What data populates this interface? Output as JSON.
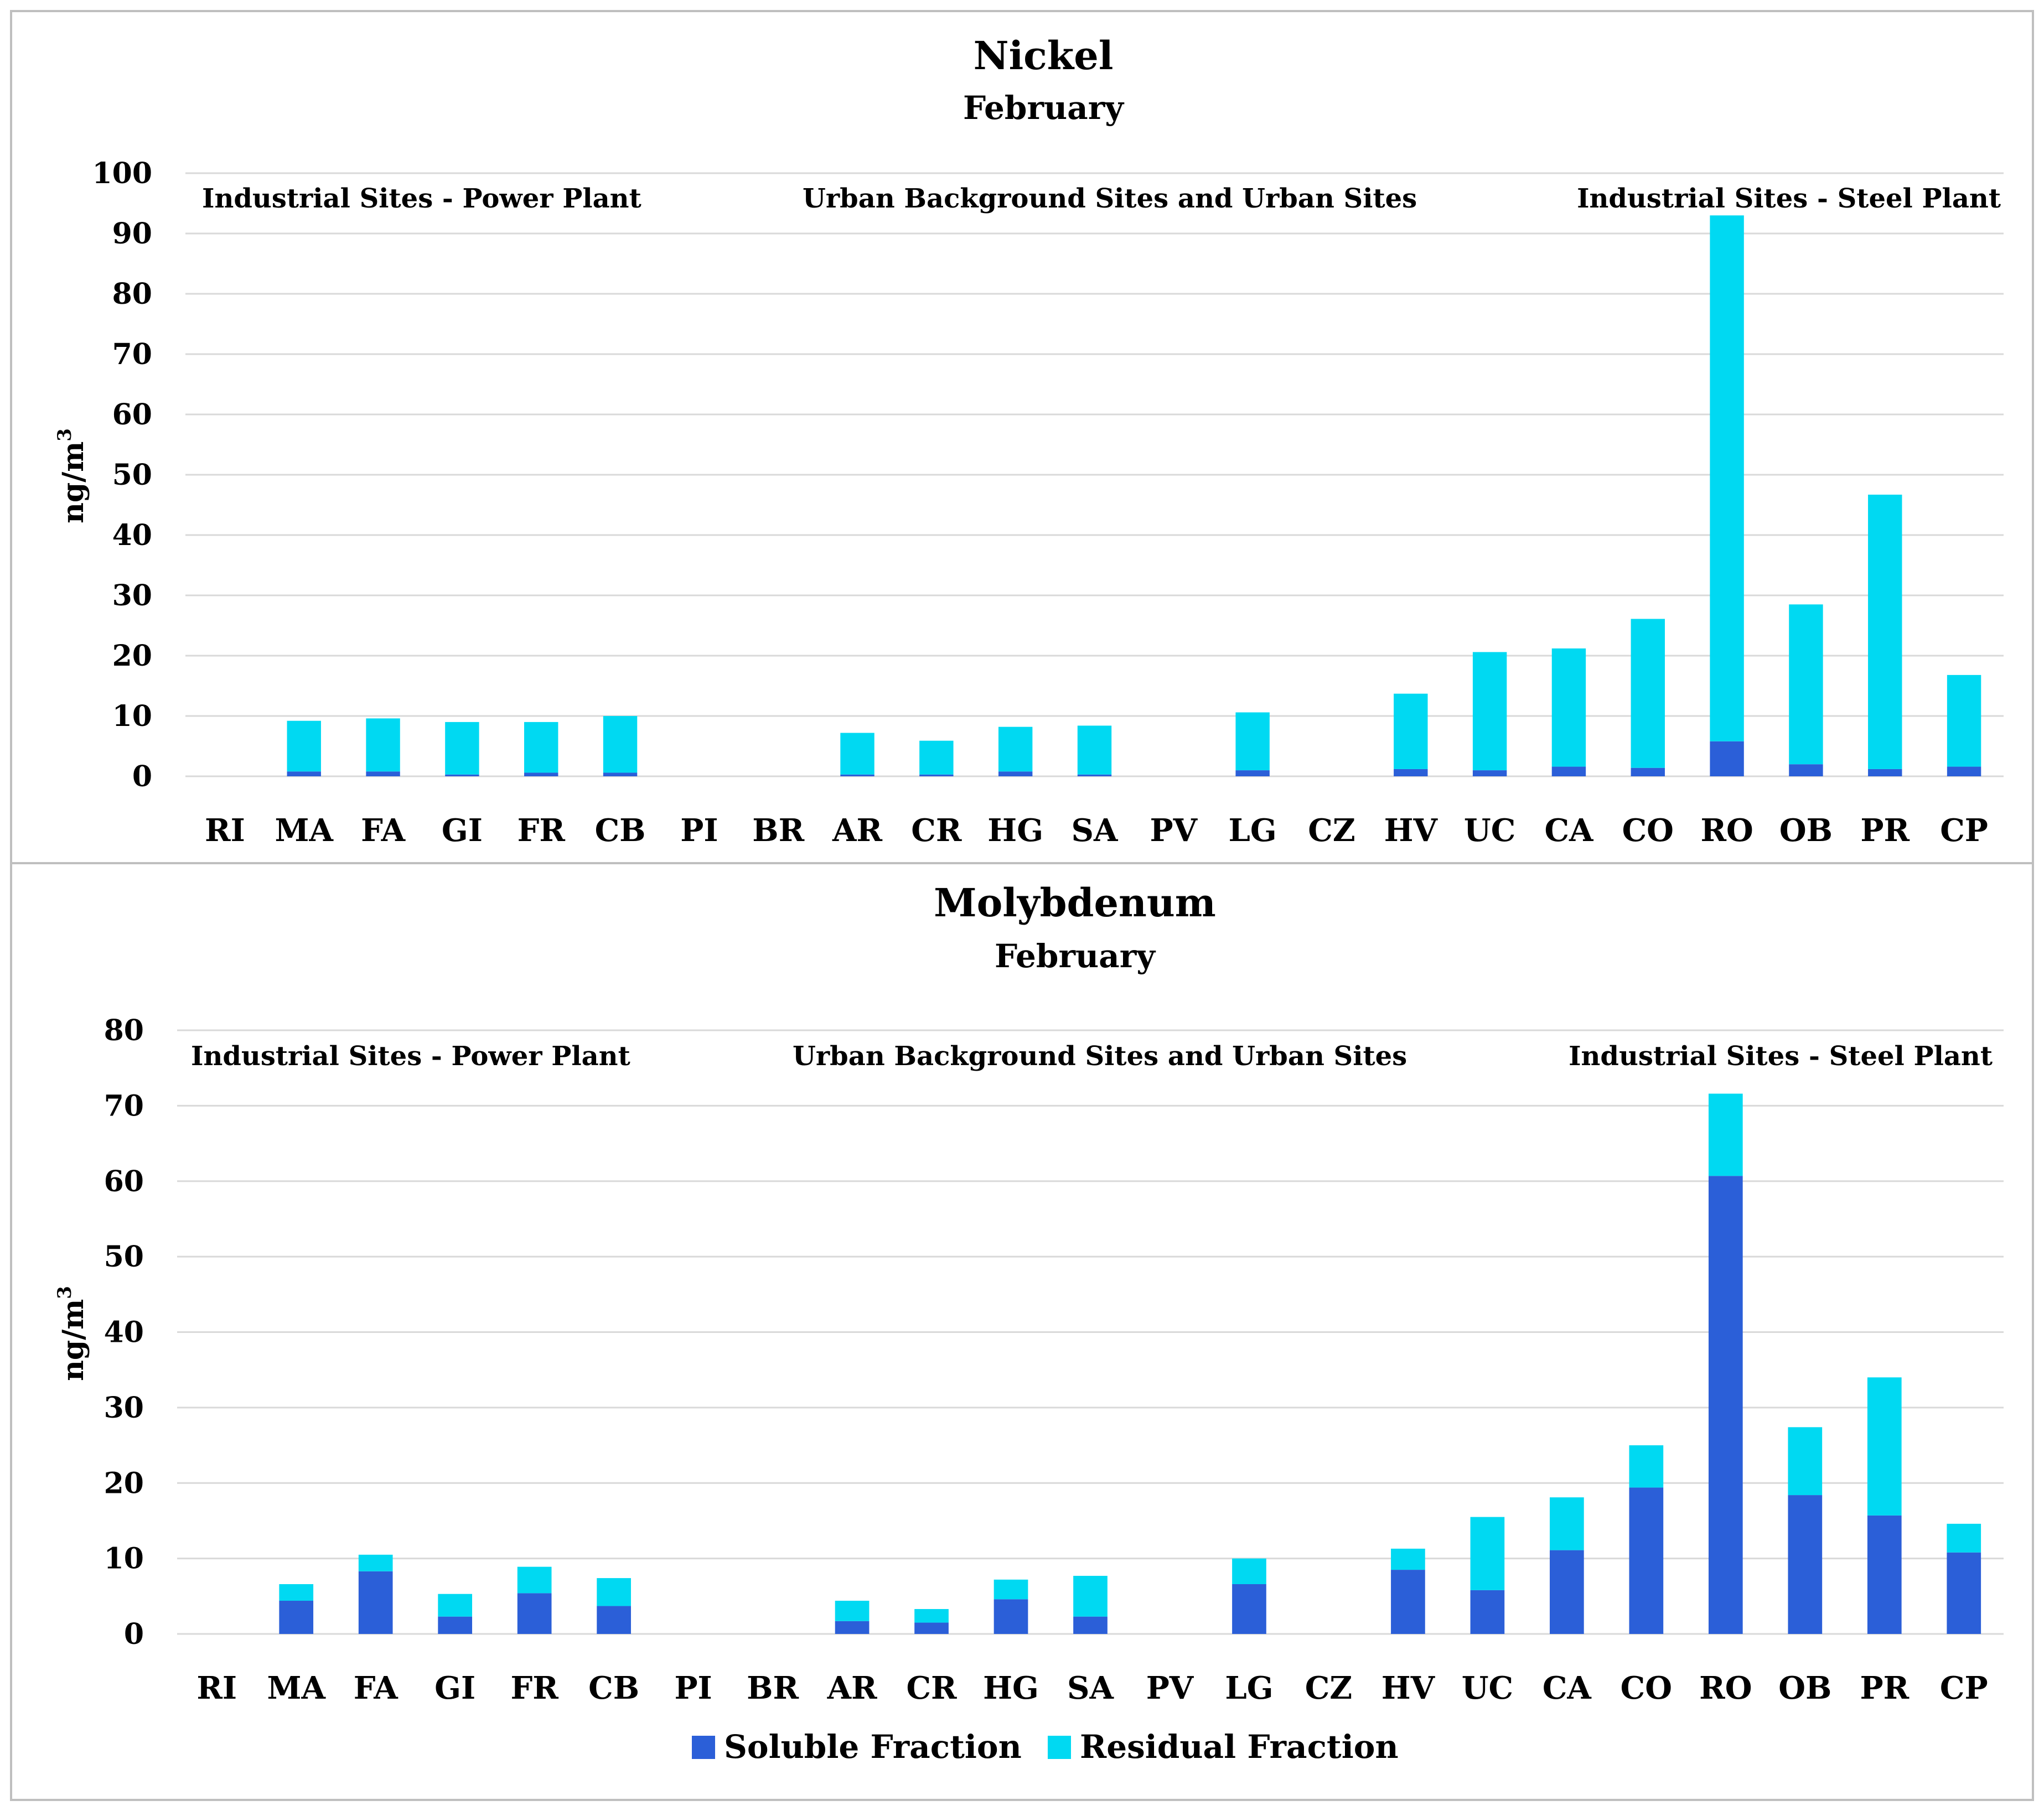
{
  "chart_data": [
    {
      "type": "bar",
      "stacked": true,
      "title": "Nickel",
      "subtitle": "February",
      "ylabel": "ng/m",
      "ylabel_sup": "3",
      "ylim": [
        0,
        100
      ],
      "yticks": [
        0,
        10,
        20,
        30,
        40,
        50,
        60,
        70,
        80,
        90,
        100
      ],
      "grid": true,
      "region_labels": [
        "Industrial Sites  - Power Plant",
        "Urban Background Sites  and Urban Sites",
        "Industrial Sites  - Steel  Plant"
      ],
      "categories": [
        "RI",
        "MA",
        "FA",
        "GI",
        "FR",
        "CB",
        "PI",
        "BR",
        "AR",
        "CR",
        "HG",
        "SA",
        "PV",
        "LG",
        "CZ",
        "HV",
        "UC",
        "CA",
        "CO",
        "RO",
        "OB",
        "PR",
        "CP"
      ],
      "series": [
        {
          "name": "Soluble Fraction",
          "color": "#2B5FD8",
          "values": [
            0,
            0.8,
            0.8,
            0.3,
            0.6,
            0.6,
            0,
            0,
            0.3,
            0.3,
            0.8,
            0.3,
            0,
            1.0,
            0,
            1.2,
            1.0,
            1.6,
            1.4,
            5.8,
            2.0,
            1.2,
            1.6
          ]
        },
        {
          "name": "Residual Fraction",
          "color": "#00D9F2",
          "values": [
            0,
            8.4,
            8.8,
            8.7,
            8.4,
            9.4,
            0,
            0,
            6.9,
            5.6,
            7.4,
            8.1,
            0,
            9.6,
            0,
            12.5,
            19.6,
            19.6,
            24.7,
            87.2,
            26.5,
            45.5,
            15.2
          ]
        }
      ]
    },
    {
      "type": "bar",
      "stacked": true,
      "title": "Molybdenum",
      "subtitle": "February",
      "ylabel": "ng/m",
      "ylabel_sup": "3",
      "ylim": [
        0,
        80
      ],
      "yticks": [
        0,
        10,
        20,
        30,
        40,
        50,
        60,
        70,
        80
      ],
      "grid": true,
      "region_labels": [
        "Industrial Sites  - Power Plant",
        "Urban Background Sites  and Urban Sites",
        "Industrial Sites  - Steel  Plant"
      ],
      "categories": [
        "RI",
        "MA",
        "FA",
        "GI",
        "FR",
        "CB",
        "PI",
        "BR",
        "AR",
        "CR",
        "HG",
        "SA",
        "PV",
        "LG",
        "CZ",
        "HV",
        "UC",
        "CA",
        "CO",
        "RO",
        "OB",
        "PR",
        "CP"
      ],
      "series": [
        {
          "name": "Soluble Fraction",
          "color": "#2B5FD8",
          "values": [
            0,
            4.4,
            8.3,
            2.3,
            5.4,
            3.7,
            0,
            0,
            1.7,
            1.5,
            4.6,
            2.3,
            0,
            6.6,
            0,
            8.5,
            5.8,
            11.1,
            19.4,
            60.7,
            18.4,
            15.7,
            10.8
          ]
        },
        {
          "name": "Residual Fraction",
          "color": "#00D9F2",
          "values": [
            0,
            2.2,
            2.2,
            3.0,
            3.5,
            3.7,
            0,
            0,
            2.7,
            1.8,
            2.6,
            5.4,
            0,
            3.4,
            0,
            2.8,
            9.7,
            7.0,
            5.6,
            10.9,
            9.0,
            18.3,
            3.8
          ]
        }
      ]
    }
  ],
  "legend": {
    "items": [
      {
        "label": "Soluble Fraction",
        "color": "#2B5FD8"
      },
      {
        "label": "Residual Fraction",
        "color": "#00D9F2"
      }
    ]
  }
}
